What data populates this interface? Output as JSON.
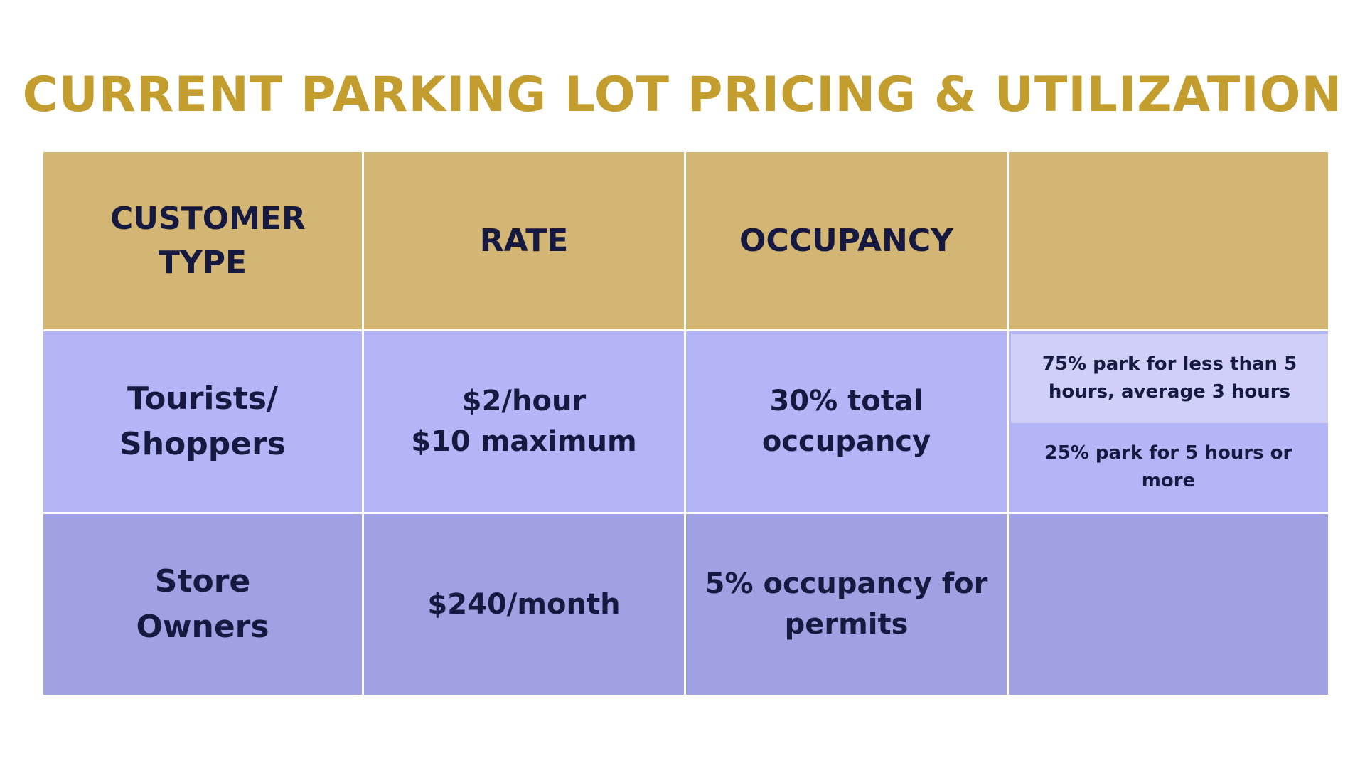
{
  "title": "CURRENT PARKING LOT PRICING & UTILIZATION",
  "table": {
    "headers": [
      "CUSTOMER TYPE",
      "RATE",
      "OCCUPANCY",
      ""
    ],
    "rows": [
      {
        "customer_type": "Tourists/ Shoppers",
        "rate_lines": [
          "$2/hour",
          "$10 maximum"
        ],
        "occupancy": "30% total occupancy",
        "notes": [
          "75% park for less than 5 hours, average 3 hours",
          "25% park for 5 hours or more"
        ]
      },
      {
        "customer_type": "Store Owners",
        "rate_lines": [
          "$240/month"
        ],
        "occupancy": "5% occupancy for permits",
        "notes": []
      }
    ]
  },
  "colors": {
    "title": "#c39d2d",
    "header_bg": "#d3b574",
    "row1_bg": "#b4b5f7",
    "row1_note_highlight": "#d0cff7",
    "row2_bg": "#a0a1e3",
    "text": "#171a40"
  }
}
